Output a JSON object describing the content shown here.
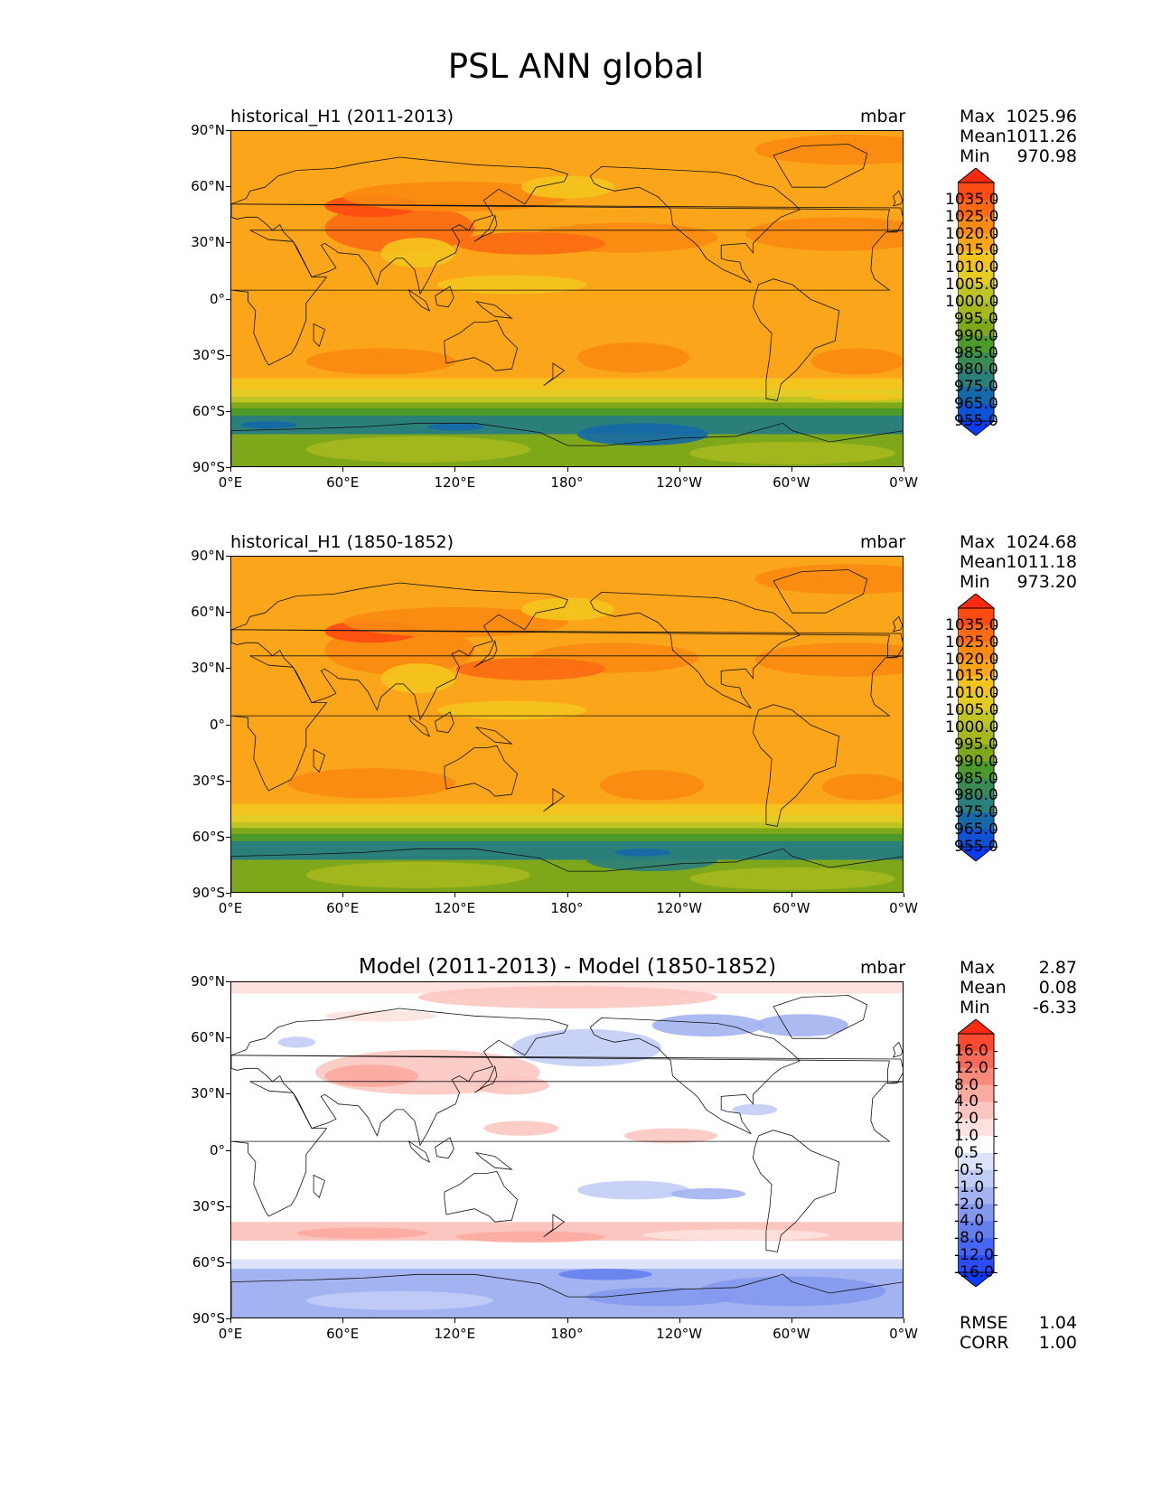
{
  "figure": {
    "title": "PSL ANN global"
  },
  "axes": {
    "y_ticks": [
      "90°N",
      "60°N",
      "30°N",
      "0°",
      "30°S",
      "60°S",
      "90°S"
    ],
    "x_ticks": [
      "0°E",
      "60°E",
      "120°E",
      "180°",
      "120°W",
      "60°W",
      "0°W"
    ]
  },
  "panels": [
    {
      "title": "historical_H1 (2011-2013)",
      "units": "mbar",
      "stats": [
        {
          "label": "Max",
          "value": "1025.96"
        },
        {
          "label": "Mean",
          "value": "1011.26"
        },
        {
          "label": "Min",
          "value": "970.98"
        }
      ],
      "colorbar_labels": [
        "1035.0",
        "1025.0",
        "1020.0",
        "1015.0",
        "1010.0",
        "1005.0",
        "1000.0",
        "995.0",
        "990.0",
        "985.0",
        "980.0",
        "975.0",
        "965.0",
        "955.0"
      ]
    },
    {
      "title": "historical_H1 (1850-1852)",
      "units": "mbar",
      "stats": [
        {
          "label": "Max",
          "value": "1024.68"
        },
        {
          "label": "Mean",
          "value": "1011.18"
        },
        {
          "label": "Min",
          "value": "973.20"
        }
      ],
      "colorbar_labels": [
        "1035.0",
        "1025.0",
        "1020.0",
        "1015.0",
        "1010.0",
        "1005.0",
        "1000.0",
        "995.0",
        "990.0",
        "985.0",
        "980.0",
        "975.0",
        "965.0",
        "955.0"
      ]
    },
    {
      "title": "Model (2011-2013) - Model (1850-1852)",
      "units": "mbar",
      "stats": [
        {
          "label": "Max",
          "value": "2.87"
        },
        {
          "label": "Mean",
          "value": "0.08"
        },
        {
          "label": "Min",
          "value": "-6.33"
        }
      ],
      "colorbar_labels": [
        "16.0",
        "12.0",
        "8.0",
        "4.0",
        "2.0",
        "1.0",
        "0.5",
        "-0.5",
        "-1.0",
        "-2.0",
        "-4.0",
        "-8.0",
        "-12.0",
        "-16.0"
      ],
      "bottom_stats": [
        {
          "label": "RMSE",
          "value": "1.04"
        },
        {
          "label": "CORR",
          "value": "1.00"
        }
      ]
    }
  ],
  "colors": {
    "abs_scale": [
      "#ff2a10",
      "#ff4a12",
      "#fb6a12",
      "#f98a12",
      "#fba51a",
      "#f4c41e",
      "#e5cc24",
      "#bfc425",
      "#a6b81e",
      "#7ea71a",
      "#4c9a2a",
      "#3a8a54",
      "#2b7f7a",
      "#1569a8",
      "#0f52d6",
      "#0a3cff"
    ],
    "diff_scale": [
      "#ff2a10",
      "#ff4a30",
      "#f86a5a",
      "#f98a7a",
      "#fbaaa0",
      "#fcc6c0",
      "#fde2df",
      "#ffffff",
      "#dde3fa",
      "#c2cdf6",
      "#a3b3f1",
      "#8499ee",
      "#6580ee",
      "#4566f2",
      "#2a4cf6",
      "#0a3cff"
    ]
  }
}
